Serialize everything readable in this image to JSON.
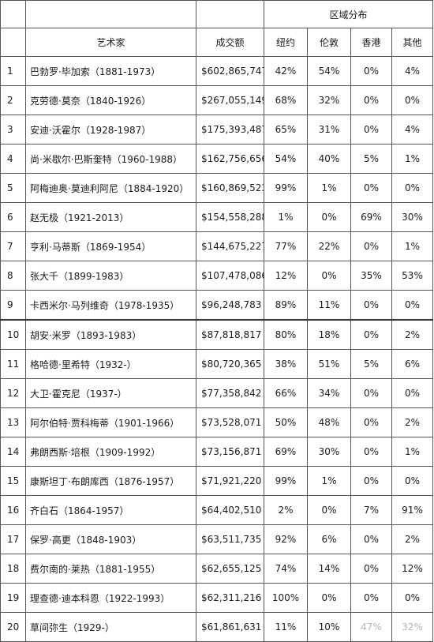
{
  "header": {
    "region_group": "区域分布",
    "artist": "艺术家",
    "amount": "成交额",
    "regions": [
      "纽约",
      "伦敦",
      "香港",
      "其他"
    ]
  },
  "rows": [
    {
      "rank": "1",
      "artist": "巴勃罗·毕加索（1881-1973）",
      "amount": "$602,865,747",
      "ny": "42%",
      "london": "54%",
      "hk": "0%",
      "other": "4%"
    },
    {
      "rank": "2",
      "artist": "克劳德·莫奈（1840-1926）",
      "amount": "$267,055,149",
      "ny": "68%",
      "london": "32%",
      "hk": "0%",
      "other": "0%"
    },
    {
      "rank": "3",
      "artist": "安迪·沃霍尔（1928-1987）",
      "amount": "$175,393,487",
      "ny": "65%",
      "london": "31%",
      "hk": "0%",
      "other": "4%"
    },
    {
      "rank": "4",
      "artist": "尚·米歇尔·巴斯奎特（1960-1988）",
      "amount": "$162,756,656",
      "ny": "54%",
      "london": "40%",
      "hk": "5%",
      "other": "1%"
    },
    {
      "rank": "5",
      "artist": "阿梅迪奥·莫迪利阿尼（1884-1920）",
      "amount": "$160,869,523",
      "ny": "99%",
      "london": "1%",
      "hk": "0%",
      "other": "0%"
    },
    {
      "rank": "6",
      "artist": "赵无极（1921-2013）",
      "amount": "$154,558,288",
      "ny": "1%",
      "london": "0%",
      "hk": "69%",
      "other": "30%"
    },
    {
      "rank": "7",
      "artist": "亨利·马蒂斯（1869-1954）",
      "amount": "$144,675,227",
      "ny": "77%",
      "london": "22%",
      "hk": "0%",
      "other": "1%"
    },
    {
      "rank": "8",
      "artist": "张大千（1899-1983）",
      "amount": "$107,478,086",
      "ny": "12%",
      "london": "0%",
      "hk": "35%",
      "other": "53%"
    },
    {
      "rank": "9",
      "artist": "卡西米尔·马列维奇（1978-1935）",
      "amount": "$96,248,783",
      "ny": "89%",
      "london": "11%",
      "hk": "0%",
      "other": "0%"
    },
    {
      "rank": "10",
      "artist": "胡安·米罗（1893-1983）",
      "amount": "$87,818,817",
      "ny": "80%",
      "london": "18%",
      "hk": "0%",
      "other": "2%"
    },
    {
      "rank": "11",
      "artist": "格哈德·里希特（1932-）",
      "amount": "$80,720,365",
      "ny": "38%",
      "london": "51%",
      "hk": "5%",
      "other": "6%"
    },
    {
      "rank": "12",
      "artist": "大卫·霍克尼（1937-）",
      "amount": "$77,358,842",
      "ny": "66%",
      "london": "34%",
      "hk": "0%",
      "other": "0%"
    },
    {
      "rank": "13",
      "artist": "阿尔伯特·贾科梅蒂（1901-1966）",
      "amount": "$73,528,071",
      "ny": "50%",
      "london": "48%",
      "hk": "0%",
      "other": "2%"
    },
    {
      "rank": "14",
      "artist": "弗朗西斯·培根（1909-1992）",
      "amount": "$73,156,871",
      "ny": "69%",
      "london": "30%",
      "hk": "0%",
      "other": "1%"
    },
    {
      "rank": "15",
      "artist": "康斯坦丁·布朗库西（1876-1957）",
      "amount": "$71,921,220",
      "ny": "99%",
      "london": "1%",
      "hk": "0%",
      "other": "0%"
    },
    {
      "rank": "16",
      "artist": "齐白石（1864-1957）",
      "amount": "$64,402,510",
      "ny": "2%",
      "london": "0%",
      "hk": "7%",
      "other": "91%"
    },
    {
      "rank": "17",
      "artist": "保罗·高更（1848-1903）",
      "amount": "$63,511,735",
      "ny": "92%",
      "london": "6%",
      "hk": "0%",
      "other": "2%"
    },
    {
      "rank": "18",
      "artist": "费尔南的·莱热（1881-1955）",
      "amount": "$62,655,125",
      "ny": "74%",
      "london": "14%",
      "hk": "0%",
      "other": "12%"
    },
    {
      "rank": "19",
      "artist": "理查德·迪本科恩（1922-1993）",
      "amount": "$62,311,216",
      "ny": "100%",
      "london": "0%",
      "hk": "0%",
      "other": "0%"
    },
    {
      "rank": "20",
      "artist": "草间弥生（1929-）",
      "amount": "$61,861,631",
      "ny": "11%",
      "london": "10%",
      "hk": "47%",
      "other": "32%"
    }
  ]
}
